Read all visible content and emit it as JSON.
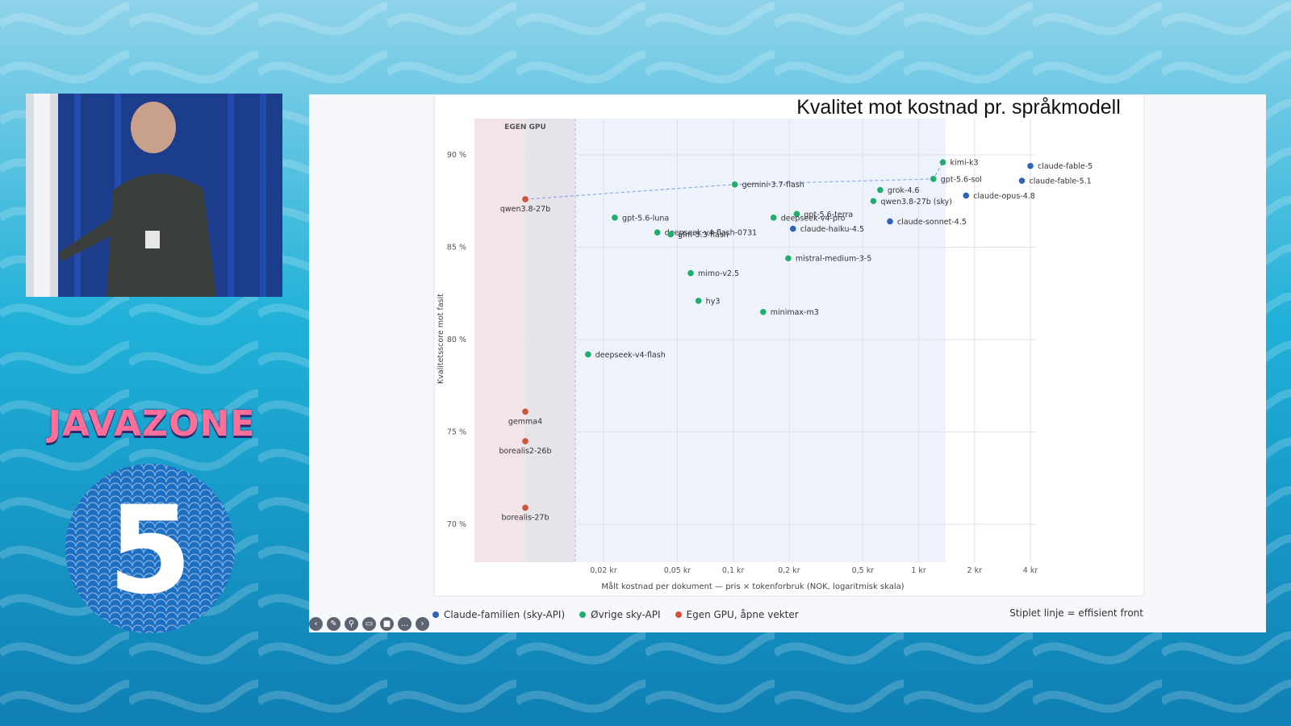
{
  "branding": {
    "logo_text": "JAVAZONE",
    "day_number": "5"
  },
  "slide": {
    "title": "Kvalitet mot kostnad pr. språkmodell"
  },
  "colors": {
    "claude": "#2d63b8",
    "sky": "#1fae6b",
    "gpu": "#d1533a",
    "front": "#8fa9e3"
  },
  "legend": {
    "items": [
      {
        "label": "Claude-familien (sky-API)",
        "color": "#2d63b8"
      },
      {
        "label": "Øvrige sky-API",
        "color": "#1fae6b"
      },
      {
        "label": "Egen GPU, åpne vekter",
        "color": "#d1533a"
      }
    ],
    "note": "Stiplet linje = effisient front"
  },
  "toolbar": {
    "icons": [
      "arrow-left-icon",
      "pen-icon",
      "zoom-icon",
      "captions-icon",
      "video-icon",
      "more-icon",
      "arrow-right-icon"
    ]
  },
  "chart_data": {
    "type": "scatter",
    "ylabel": "Kvalitetsscore mot fasit",
    "xlabel": "Målt kostnad per dokument — pris × tokenforbruk (NOK, logaritmisk skala)",
    "x_scale": "log",
    "xticks": [
      {
        "value": 0.02,
        "label": "0,02 kr"
      },
      {
        "value": 0.05,
        "label": "0,05 kr"
      },
      {
        "value": 0.1,
        "label": "0,1 kr"
      },
      {
        "value": 0.2,
        "label": "0,2 kr"
      },
      {
        "value": 0.5,
        "label": "0,5 kr"
      },
      {
        "value": 1,
        "label": "1 kr"
      },
      {
        "value": 2,
        "label": "2 kr"
      },
      {
        "value": 4,
        "label": "4 kr"
      }
    ],
    "yticks": [
      {
        "value": 70,
        "label": "70 %"
      },
      {
        "value": 75,
        "label": "75 %"
      },
      {
        "value": 80,
        "label": "80 %"
      },
      {
        "value": 85,
        "label": "85 %"
      },
      {
        "value": 90,
        "label": "90 %"
      }
    ],
    "ylim": [
      68,
      92
    ],
    "gpu_region_label": "EGEN GPU",
    "points": [
      {
        "name": "qwen3.8-27b",
        "group": "gpu",
        "x": null,
        "y": 87.6
      },
      {
        "name": "gemma4",
        "group": "gpu",
        "x": null,
        "y": 76.1
      },
      {
        "name": "borealis2-26b",
        "group": "gpu",
        "x": null,
        "y": 74.5
      },
      {
        "name": "borealis-27b",
        "group": "gpu",
        "x": null,
        "y": 70.9
      },
      {
        "name": "kimi-k3",
        "group": "sky",
        "x": 1.35,
        "y": 89.6
      },
      {
        "name": "gpt-5.6-sol",
        "group": "sky",
        "x": 1.2,
        "y": 88.7
      },
      {
        "name": "gemini-3.7-flash",
        "group": "sky",
        "x": 0.102,
        "y": 88.4
      },
      {
        "name": "grok-4.6",
        "group": "sky",
        "x": 0.62,
        "y": 88.1
      },
      {
        "name": "qwen3.8-27b (sky)",
        "group": "sky",
        "x": 0.57,
        "y": 87.5
      },
      {
        "name": "gpt-5.6-terra",
        "group": "sky",
        "x": 0.22,
        "y": 86.8
      },
      {
        "name": "deepseek-v4-pro",
        "group": "sky",
        "x": 0.165,
        "y": 86.6
      },
      {
        "name": "gpt-5.6-luna",
        "group": "sky",
        "x": 0.023,
        "y": 86.6
      },
      {
        "name": "deepseek-v4-flash-0731",
        "group": "sky",
        "x": 0.039,
        "y": 85.8
      },
      {
        "name": "glm-5.3-flash",
        "group": "sky",
        "x": 0.046,
        "y": 85.7
      },
      {
        "name": "mistral-medium-3-5",
        "group": "sky",
        "x": 0.198,
        "y": 84.4
      },
      {
        "name": "mimo-v2.5",
        "group": "sky",
        "x": 0.059,
        "y": 83.6
      },
      {
        "name": "hy3",
        "group": "sky",
        "x": 0.065,
        "y": 82.1
      },
      {
        "name": "minimax-m3",
        "group": "sky",
        "x": 0.145,
        "y": 81.5
      },
      {
        "name": "deepseek-v4-flash",
        "group": "sky",
        "x": 0.0165,
        "y": 79.2
      },
      {
        "name": "claude-fable-5",
        "group": "claude",
        "x": 4.0,
        "y": 89.4
      },
      {
        "name": "claude-fable-5.1",
        "group": "claude",
        "x": 3.6,
        "y": 88.6
      },
      {
        "name": "claude-opus-4.8",
        "group": "claude",
        "x": 1.8,
        "y": 87.8
      },
      {
        "name": "claude-sonnet-4.5",
        "group": "claude",
        "x": 0.7,
        "y": 86.4
      },
      {
        "name": "claude-haiku-4.5",
        "group": "claude",
        "x": 0.21,
        "y": 86.0
      }
    ],
    "efficient_front": [
      "qwen3.8-27b",
      "gemini-3.7-flash",
      "gpt-5.6-sol",
      "kimi-k3"
    ]
  }
}
